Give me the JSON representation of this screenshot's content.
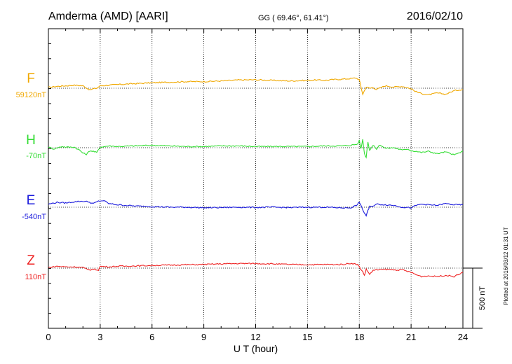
{
  "header": {
    "station": "Amderma (AMD)  [AARI]",
    "coords": "GG ( 69.46°,  61.41°)",
    "date": "2016/02/10"
  },
  "footer": {
    "plotted": "Plotted at 2016/03/12 01:31  UT"
  },
  "chart_data": {
    "type": "line",
    "title": "",
    "xlabel": "U T (hour)",
    "xlim": [
      0,
      24
    ],
    "xticks": [
      "0",
      "3",
      "6",
      "9",
      "12",
      "15",
      "18",
      "21",
      "24"
    ],
    "grid": true,
    "scale_bar": {
      "label": "500 nT",
      "value_nT": 500
    },
    "series": [
      {
        "name": "F",
        "baseline_label": "59120nT",
        "color": "#f0a800",
        "panel_offset_nT": 0,
        "x": [
          0,
          0.5,
          1,
          1.5,
          2,
          2.2,
          2.4,
          2.6,
          2.8,
          3,
          3.5,
          4,
          5,
          6,
          7,
          8,
          9,
          10,
          11,
          12,
          13,
          14,
          15,
          15.5,
          16,
          16.5,
          17,
          17.5,
          17.8,
          18,
          18.1,
          18.2,
          18.3,
          18.4,
          18.6,
          18.8,
          19,
          19.5,
          20,
          20.5,
          21,
          21.3,
          21.6,
          22,
          22.5,
          23,
          23.5,
          24
        ],
        "values": [
          7,
          15,
          20,
          25,
          20,
          2,
          -15,
          -5,
          0,
          20,
          25,
          30,
          38,
          45,
          50,
          55,
          55,
          60,
          68,
          70,
          65,
          60,
          65,
          68,
          65,
          72,
          75,
          80,
          85,
          70,
          10,
          -50,
          -20,
          10,
          0,
          5,
          -10,
          20,
          10,
          15,
          -5,
          -30,
          -45,
          -55,
          -40,
          -50,
          -20,
          -10
        ]
      },
      {
        "name": "H",
        "baseline_label": "-70nT",
        "color": "#33dd33",
        "panel_offset_nT": 0,
        "x": [
          0,
          0.3,
          0.8,
          1,
          1.5,
          1.8,
          2,
          2.2,
          2.4,
          2.6,
          2.8,
          3,
          3.5,
          4,
          5,
          6,
          7,
          8,
          9,
          10,
          11,
          12,
          13,
          14,
          15,
          16,
          17,
          17.5,
          17.9,
          18,
          18.1,
          18.2,
          18.3,
          18.4,
          18.5,
          18.6,
          18.8,
          19,
          19.2,
          19.5,
          20,
          20.5,
          20.8,
          21,
          21.3,
          21.6,
          22,
          22.5,
          23,
          23.5,
          24
        ],
        "values": [
          5,
          -10,
          10,
          5,
          5,
          -20,
          -45,
          -55,
          -25,
          -30,
          -40,
          5,
          15,
          10,
          15,
          20,
          15,
          10,
          10,
          15,
          15,
          10,
          10,
          10,
          10,
          15,
          15,
          20,
          30,
          60,
          -10,
          70,
          -50,
          -80,
          50,
          -20,
          20,
          -10,
          25,
          -5,
          0,
          -20,
          -10,
          -25,
          -30,
          -40,
          -30,
          -50,
          -35,
          -60,
          -30
        ]
      },
      {
        "name": "E",
        "baseline_label": "-540nT",
        "color": "#1a1adc",
        "panel_offset_nT": 0,
        "x": [
          0,
          0.5,
          1,
          1.5,
          2,
          2.3,
          2.6,
          2.9,
          3.2,
          3.5,
          4,
          5,
          6,
          7,
          8,
          9,
          10,
          11,
          12,
          13,
          14,
          15,
          16,
          17,
          17.5,
          17.9,
          18,
          18.1,
          18.2,
          18.3,
          18.4,
          18.5,
          18.6,
          18.8,
          19,
          19.5,
          20,
          20.5,
          21,
          21.3,
          21.6,
          22,
          22.5,
          23,
          23.5,
          24
        ],
        "values": [
          25,
          40,
          35,
          45,
          50,
          45,
          30,
          50,
          55,
          30,
          20,
          10,
          5,
          0,
          0,
          -5,
          -3,
          0,
          -2,
          0,
          -3,
          0,
          0,
          -5,
          -5,
          20,
          45,
          10,
          -20,
          -50,
          -70,
          -30,
          5,
          10,
          25,
          20,
          15,
          0,
          -5,
          15,
          25,
          20,
          15,
          30,
          20,
          20
        ]
      },
      {
        "name": "Z",
        "baseline_label": "110nT",
        "color": "#ee2222",
        "panel_offset_nT": 0,
        "x": [
          0,
          0.5,
          1,
          1.5,
          2,
          2.3,
          2.6,
          2.9,
          3,
          3.5,
          4,
          5,
          6,
          7,
          8,
          9,
          10,
          11,
          12,
          13,
          14,
          15,
          16,
          17,
          17.5,
          17.9,
          18,
          18.2,
          18.3,
          18.4,
          18.6,
          18.8,
          19,
          19.5,
          20,
          20.5,
          21,
          21.3,
          21.6,
          22,
          22.5,
          23,
          23.5,
          24
        ],
        "values": [
          5,
          15,
          10,
          10,
          5,
          -15,
          -10,
          -15,
          15,
          10,
          15,
          18,
          22,
          25,
          28,
          30,
          35,
          38,
          38,
          35,
          30,
          28,
          30,
          30,
          40,
          30,
          10,
          -30,
          -60,
          -10,
          -50,
          -20,
          -15,
          -10,
          -15,
          -15,
          -35,
          -55,
          -70,
          -65,
          -70,
          -60,
          -70,
          -35
        ]
      }
    ]
  }
}
